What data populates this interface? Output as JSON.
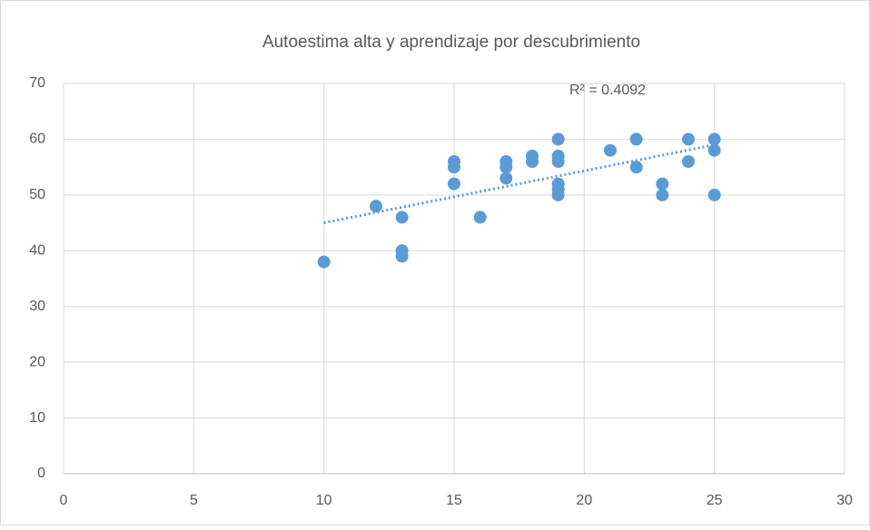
{
  "chart_data": {
    "type": "scatter",
    "title": "Autoestima alta y aprendizaje por descubrimiento",
    "x": [
      10,
      12,
      13,
      13,
      13,
      15,
      15,
      15,
      16,
      17,
      17,
      17,
      18,
      18,
      19,
      19,
      19,
      19,
      19,
      19,
      21,
      22,
      22,
      23,
      23,
      24,
      24,
      25,
      25,
      25
    ],
    "values": [
      38,
      48,
      46,
      40,
      39,
      56,
      55,
      52,
      46,
      56,
      55,
      53,
      57,
      56,
      60,
      57,
      56,
      52,
      51,
      50,
      58,
      60,
      55,
      52,
      50,
      60,
      56,
      60,
      58,
      50
    ],
    "color": "#5b9bd5",
    "trendline": {
      "x": [
        10,
        25
      ],
      "values": [
        45,
        59
      ],
      "color": "#5b9bd5"
    },
    "annotation": "R² = 0.4092",
    "xlim": [
      0,
      30
    ],
    "xticks": [
      0,
      5,
      10,
      15,
      20,
      25,
      30
    ],
    "ylim": [
      0,
      70
    ],
    "yticks": [
      0,
      10,
      20,
      30,
      40,
      50,
      60,
      70
    ],
    "grid": true
  }
}
